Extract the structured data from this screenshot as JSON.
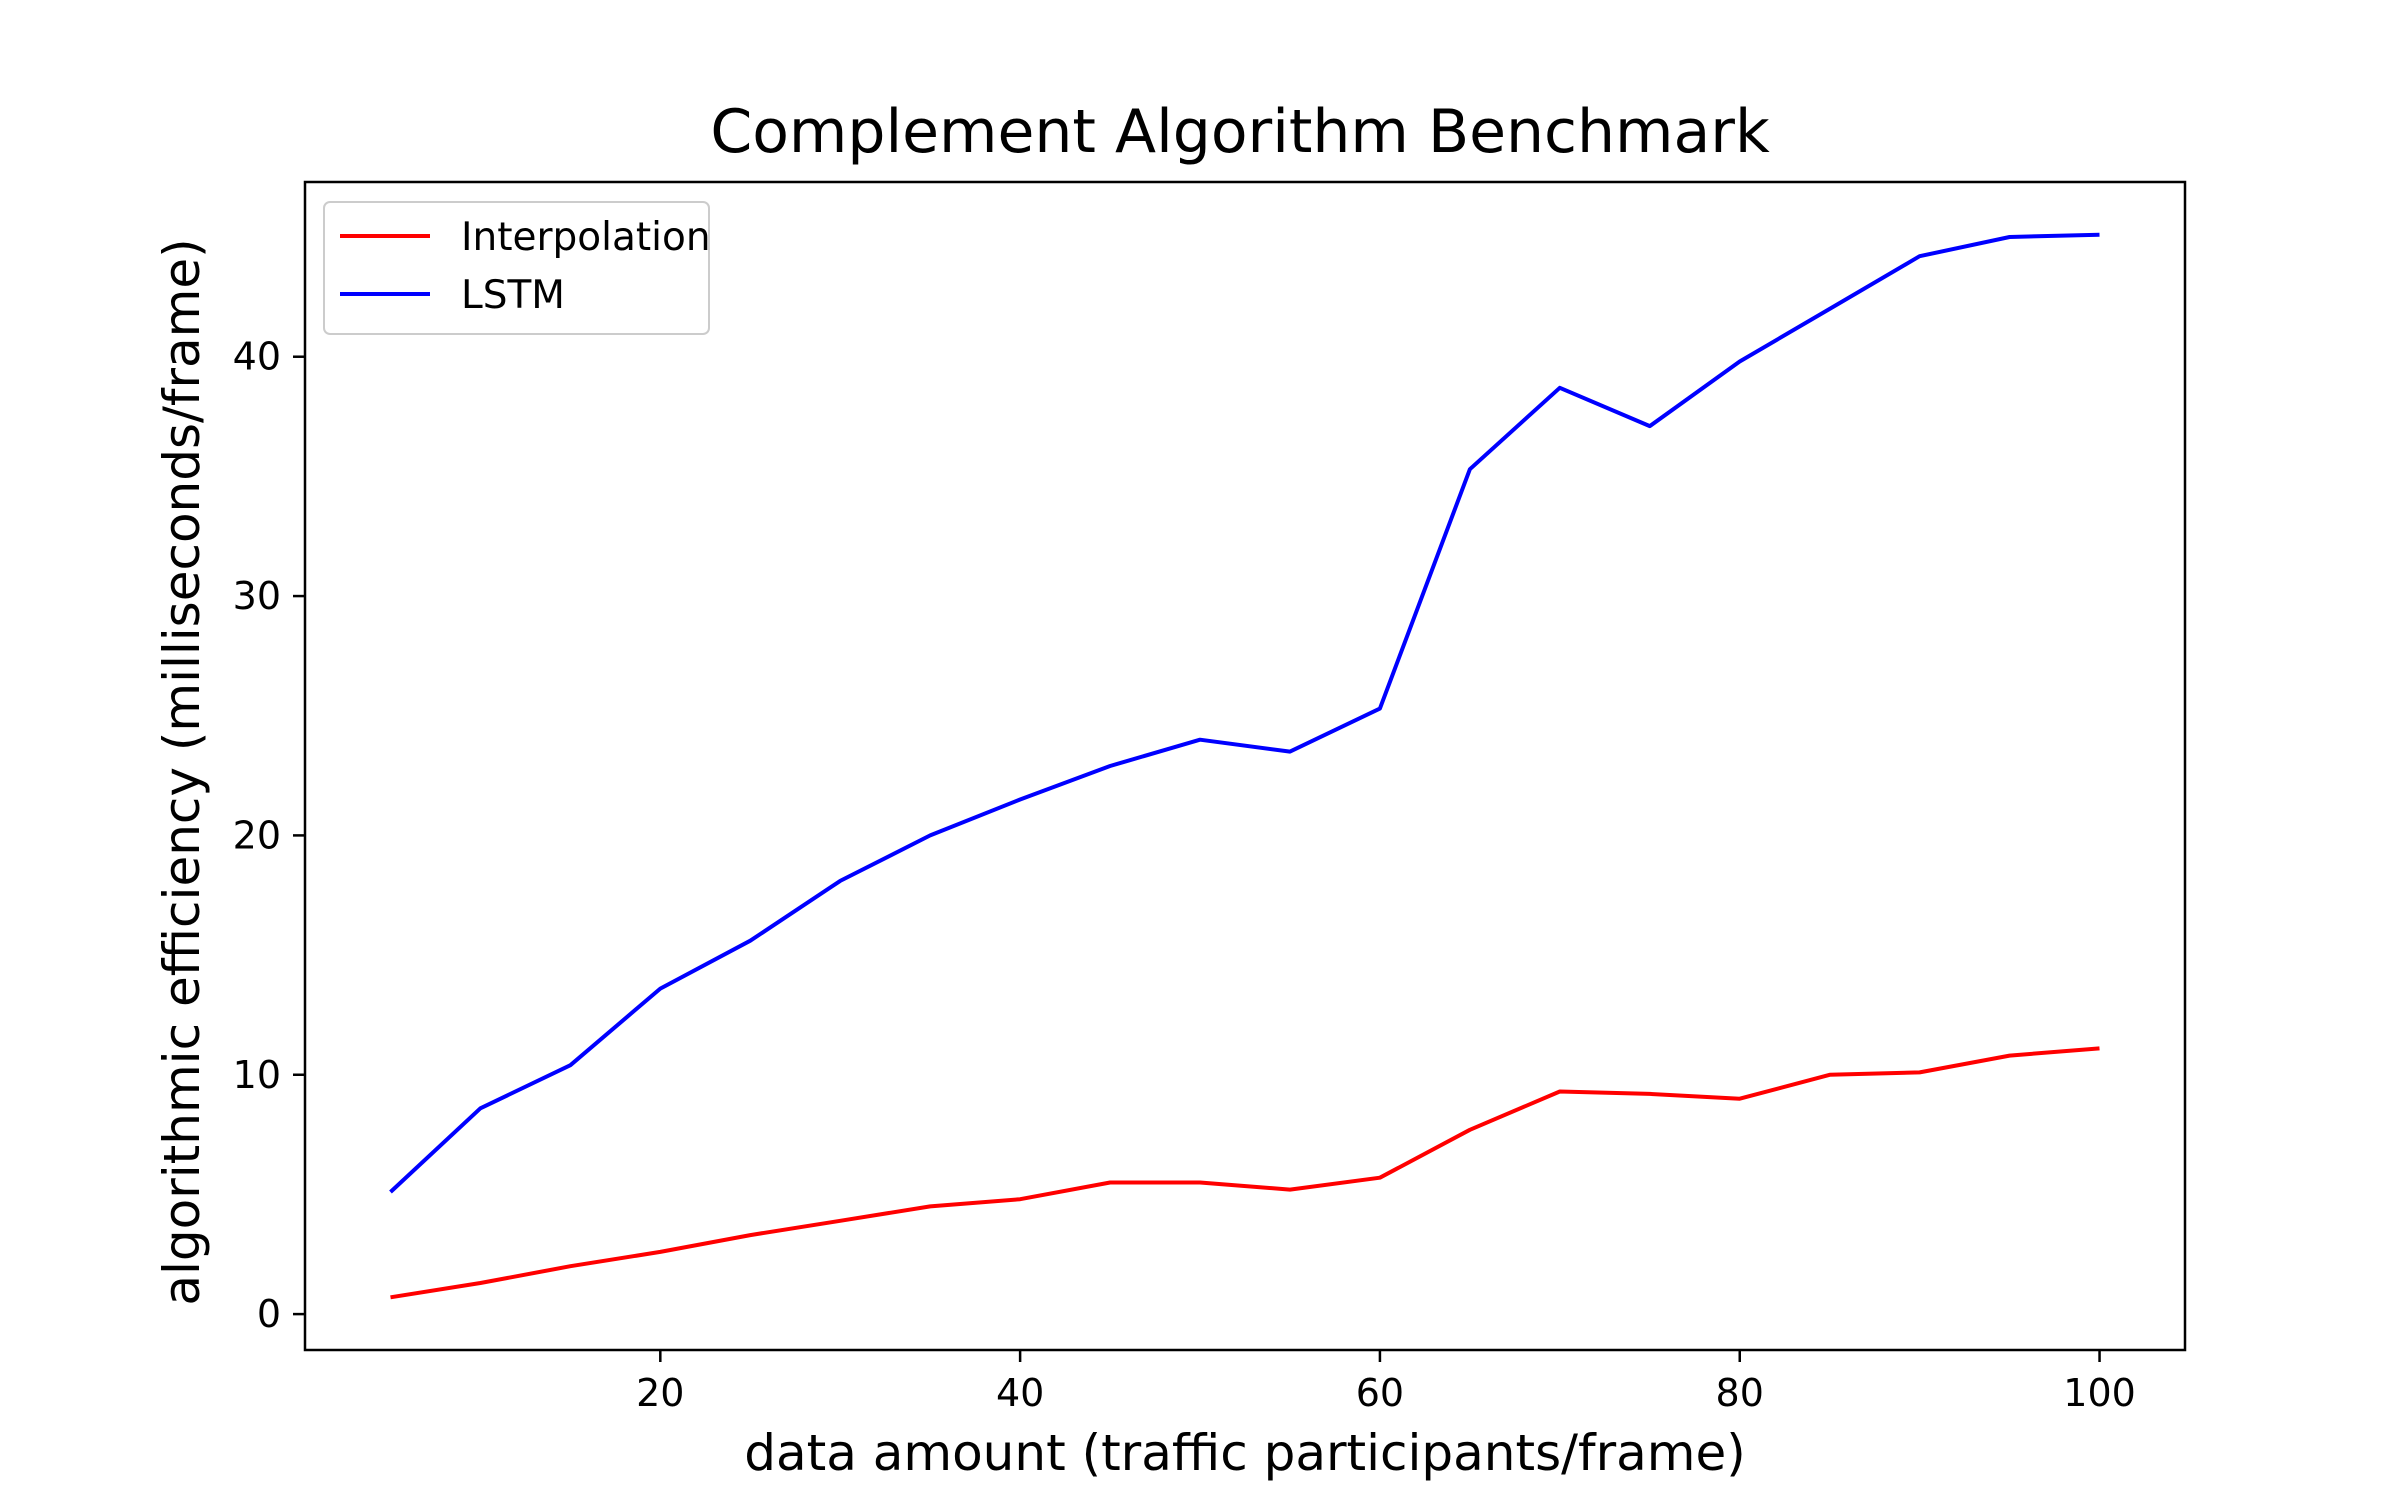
{
  "chart_data": {
    "type": "line",
    "title": "Complement Algorithm Benchmark",
    "xlabel": "data amount (traffic participants/frame)",
    "ylabel": "algorithmic efficiency (milliseconds/frame)",
    "x": [
      5,
      10,
      15,
      20,
      25,
      30,
      35,
      40,
      45,
      50,
      55,
      60,
      65,
      70,
      75,
      80,
      85,
      90,
      95,
      100
    ],
    "xlim": [
      0.25,
      104.75
    ],
    "ylim": [
      -1.5,
      47.3
    ],
    "xticks": [
      20,
      40,
      60,
      80,
      100
    ],
    "yticks": [
      0,
      10,
      20,
      30,
      40
    ],
    "xtick_labels": [
      "20",
      "40",
      "60",
      "80",
      "100"
    ],
    "ytick_labels": [
      "0",
      "10",
      "20",
      "30",
      "40"
    ],
    "grid": false,
    "legend_position": "upper-left",
    "series": [
      {
        "name": "Interpolation",
        "color": "#ff0000",
        "values": [
          0.7,
          1.3,
          2.0,
          2.6,
          3.3,
          3.9,
          4.5,
          4.8,
          5.5,
          5.5,
          5.2,
          5.7,
          7.7,
          9.3,
          9.2,
          9.0,
          10.0,
          10.1,
          10.8,
          11.1
        ]
      },
      {
        "name": "LSTM",
        "color": "#0000ff",
        "values": [
          5.1,
          8.6,
          10.4,
          13.6,
          15.6,
          18.1,
          20.0,
          21.5,
          22.9,
          24.0,
          23.5,
          25.3,
          35.3,
          38.7,
          37.1,
          39.8,
          42.0,
          44.2,
          45.0,
          45.1
        ]
      }
    ]
  }
}
